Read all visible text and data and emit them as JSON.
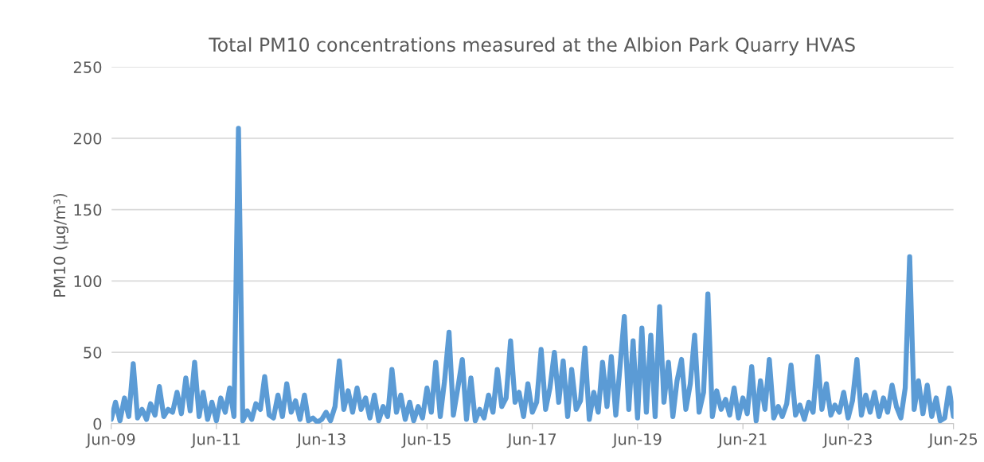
{
  "chart_data": {
    "type": "line",
    "title": "Total PM10 concentrations measured at the Albion Park Quarry HVAS",
    "ylabel": "PM10 (µg/m³)",
    "x": [
      "2009-06",
      "2009-07",
      "2009-08",
      "2009-09",
      "2009-10",
      "2009-11",
      "2009-12",
      "2010-01",
      "2010-02",
      "2010-03",
      "2010-04",
      "2010-05",
      "2010-06",
      "2010-07",
      "2010-08",
      "2010-09",
      "2010-10",
      "2010-11",
      "2010-12",
      "2011-01",
      "2011-02",
      "2011-03",
      "2011-04",
      "2011-05",
      "2011-06",
      "2011-07",
      "2011-08",
      "2011-09",
      "2011-10",
      "2011-11",
      "2011-12",
      "2012-01",
      "2012-02",
      "2012-03",
      "2012-04",
      "2012-05",
      "2012-06",
      "2012-07",
      "2012-08",
      "2012-09",
      "2012-10",
      "2012-11",
      "2012-12",
      "2013-01",
      "2013-02",
      "2013-03",
      "2013-04",
      "2013-05",
      "2013-06",
      "2013-07",
      "2013-08",
      "2013-09",
      "2013-10",
      "2013-11",
      "2013-12",
      "2014-01",
      "2014-02",
      "2014-03",
      "2014-04",
      "2014-05",
      "2014-06",
      "2014-07",
      "2014-08",
      "2014-09",
      "2014-10",
      "2014-11",
      "2014-12",
      "2015-01",
      "2015-02",
      "2015-03",
      "2015-04",
      "2015-05",
      "2015-06",
      "2015-07",
      "2015-08",
      "2015-09",
      "2015-10",
      "2015-11",
      "2015-12",
      "2016-01",
      "2016-02",
      "2016-03",
      "2016-04",
      "2016-05",
      "2016-06",
      "2016-07",
      "2016-08",
      "2016-09",
      "2016-10",
      "2016-11",
      "2016-12",
      "2017-01",
      "2017-02",
      "2017-03",
      "2017-04",
      "2017-05",
      "2017-06",
      "2017-07",
      "2017-08",
      "2017-09",
      "2017-10",
      "2017-11",
      "2017-12",
      "2018-01",
      "2018-02",
      "2018-03",
      "2018-04",
      "2018-05",
      "2018-06",
      "2018-07",
      "2018-08",
      "2018-09",
      "2018-10",
      "2018-11",
      "2018-12",
      "2019-01",
      "2019-02",
      "2019-03",
      "2019-04",
      "2019-05",
      "2019-06",
      "2019-07",
      "2019-08",
      "2019-09",
      "2019-10",
      "2019-11",
      "2019-12",
      "2020-01",
      "2020-02",
      "2020-03",
      "2020-04",
      "2020-05",
      "2020-06",
      "2020-07",
      "2020-08",
      "2020-09",
      "2020-10",
      "2020-11",
      "2020-12",
      "2021-01",
      "2021-02",
      "2021-03",
      "2021-04",
      "2021-05",
      "2021-06",
      "2021-07",
      "2021-08",
      "2021-09",
      "2021-10",
      "2021-11",
      "2021-12",
      "2022-01",
      "2022-02",
      "2022-03",
      "2022-04",
      "2022-05",
      "2022-06",
      "2022-07",
      "2022-08",
      "2022-09",
      "2022-10",
      "2022-11",
      "2022-12",
      "2023-01",
      "2023-02",
      "2023-03",
      "2023-04",
      "2023-05",
      "2023-06",
      "2023-07",
      "2023-08",
      "2023-09",
      "2023-10",
      "2023-11",
      "2023-12",
      "2024-01",
      "2024-02",
      "2024-03",
      "2024-04",
      "2024-05",
      "2024-06",
      "2024-07",
      "2024-08",
      "2024-09",
      "2024-10",
      "2024-11",
      "2024-12",
      "2025-01",
      "2025-02",
      "2025-03",
      "2025-04",
      "2025-05",
      "2025-06"
    ],
    "series": [
      {
        "color": "#5b9bd5",
        "values": [
          3,
          15,
          2,
          18,
          5,
          42,
          4,
          10,
          3,
          14,
          6,
          26,
          5,
          10,
          8,
          22,
          7,
          32,
          9,
          43,
          5,
          22,
          3,
          15,
          2,
          18,
          8,
          25,
          5,
          207,
          2,
          9,
          3,
          14,
          10,
          33,
          6,
          4,
          20,
          5,
          28,
          8,
          16,
          3,
          20,
          2,
          4,
          1,
          3,
          8,
          2,
          12,
          44,
          10,
          23,
          8,
          25,
          10,
          18,
          4,
          20,
          2,
          12,
          5,
          38,
          8,
          20,
          3,
          15,
          2,
          12,
          4,
          25,
          8,
          43,
          5,
          30,
          64,
          6,
          25,
          45,
          3,
          32,
          2,
          10,
          4,
          20,
          8,
          38,
          12,
          18,
          58,
          15,
          22,
          5,
          28,
          8,
          15,
          52,
          10,
          25,
          50,
          15,
          44,
          5,
          38,
          10,
          16,
          53,
          3,
          22,
          8,
          43,
          12,
          47,
          6,
          42,
          75,
          10,
          58,
          4,
          67,
          8,
          62,
          5,
          82,
          15,
          43,
          5,
          30,
          45,
          10,
          28,
          62,
          8,
          22,
          91,
          5,
          23,
          10,
          17,
          6,
          25,
          4,
          18,
          7,
          40,
          2,
          30,
          10,
          45,
          4,
          12,
          5,
          14,
          41,
          6,
          13,
          3,
          15,
          8,
          47,
          10,
          28,
          6,
          13,
          8,
          22,
          4,
          16,
          45,
          6,
          20,
          8,
          22,
          5,
          18,
          8,
          27,
          12,
          4,
          25,
          117,
          10,
          30,
          7,
          27,
          5,
          18,
          2,
          4,
          25,
          5
        ]
      }
    ],
    "xlim": [
      "2009-06",
      "2025-06"
    ],
    "xticks": [
      {
        "value": "2009-06",
        "label": "Jun-09"
      },
      {
        "value": "2011-06",
        "label": "Jun-11"
      },
      {
        "value": "2013-06",
        "label": "Jun-13"
      },
      {
        "value": "2015-06",
        "label": "Jun-15"
      },
      {
        "value": "2017-06",
        "label": "Jun-17"
      },
      {
        "value": "2019-06",
        "label": "Jun-19"
      },
      {
        "value": "2021-06",
        "label": "Jun-21"
      },
      {
        "value": "2023-06",
        "label": "Jun-23"
      },
      {
        "value": "2025-06",
        "label": "Jun-25"
      }
    ],
    "ylim": [
      0,
      250
    ],
    "yticks": [
      0,
      50,
      100,
      150,
      200,
      250
    ],
    "grid": "y",
    "line_style": "solid",
    "marker": "none"
  }
}
